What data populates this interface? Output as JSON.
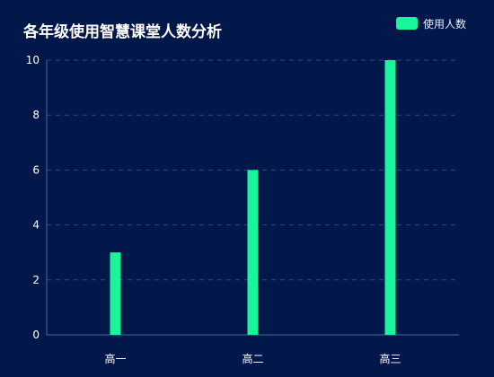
{
  "chart_data": {
    "type": "bar",
    "title": "各年级使用智慧课堂人数分析",
    "categories": [
      "高一",
      "高二",
      "高三"
    ],
    "series": [
      {
        "name": "使用人数",
        "values": [
          3,
          6,
          10
        ]
      }
    ],
    "ylim": [
      0,
      10
    ],
    "yticks": [
      0,
      2,
      4,
      6,
      8,
      10
    ],
    "grid": true,
    "legend": "top-right",
    "colors": {
      "background": "#02184b",
      "bar": "#18f59a",
      "grid": "#2a4c86",
      "axis": "#506b9c",
      "text": "#ffffff"
    }
  }
}
